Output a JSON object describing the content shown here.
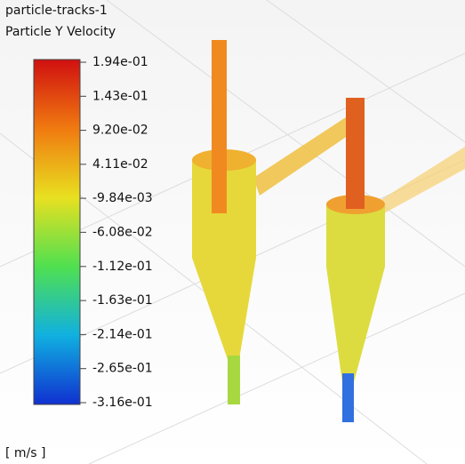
{
  "legend": {
    "title": "particle-tracks-1",
    "subtitle": "Particle Y Velocity",
    "range": [
      -0.316,
      0.194
    ],
    "ticks": [
      {
        "value": 0.194,
        "label": "1.94e-01"
      },
      {
        "value": 0.143,
        "label": "1.43e-01"
      },
      {
        "value": 0.092,
        "label": "9.20e-02"
      },
      {
        "value": 0.0411,
        "label": "4.11e-02"
      },
      {
        "value": -0.00984,
        "label": "-9.84e-03"
      },
      {
        "value": -0.0608,
        "label": "-6.08e-02"
      },
      {
        "value": -0.112,
        "label": "-1.12e-01"
      },
      {
        "value": -0.163,
        "label": "-1.63e-01"
      },
      {
        "value": -0.214,
        "label": "-2.14e-01"
      },
      {
        "value": -0.265,
        "label": "-2.65e-01"
      },
      {
        "value": -0.316,
        "label": "-3.16e-01"
      }
    ],
    "unit": "[ m/s ]"
  }
}
